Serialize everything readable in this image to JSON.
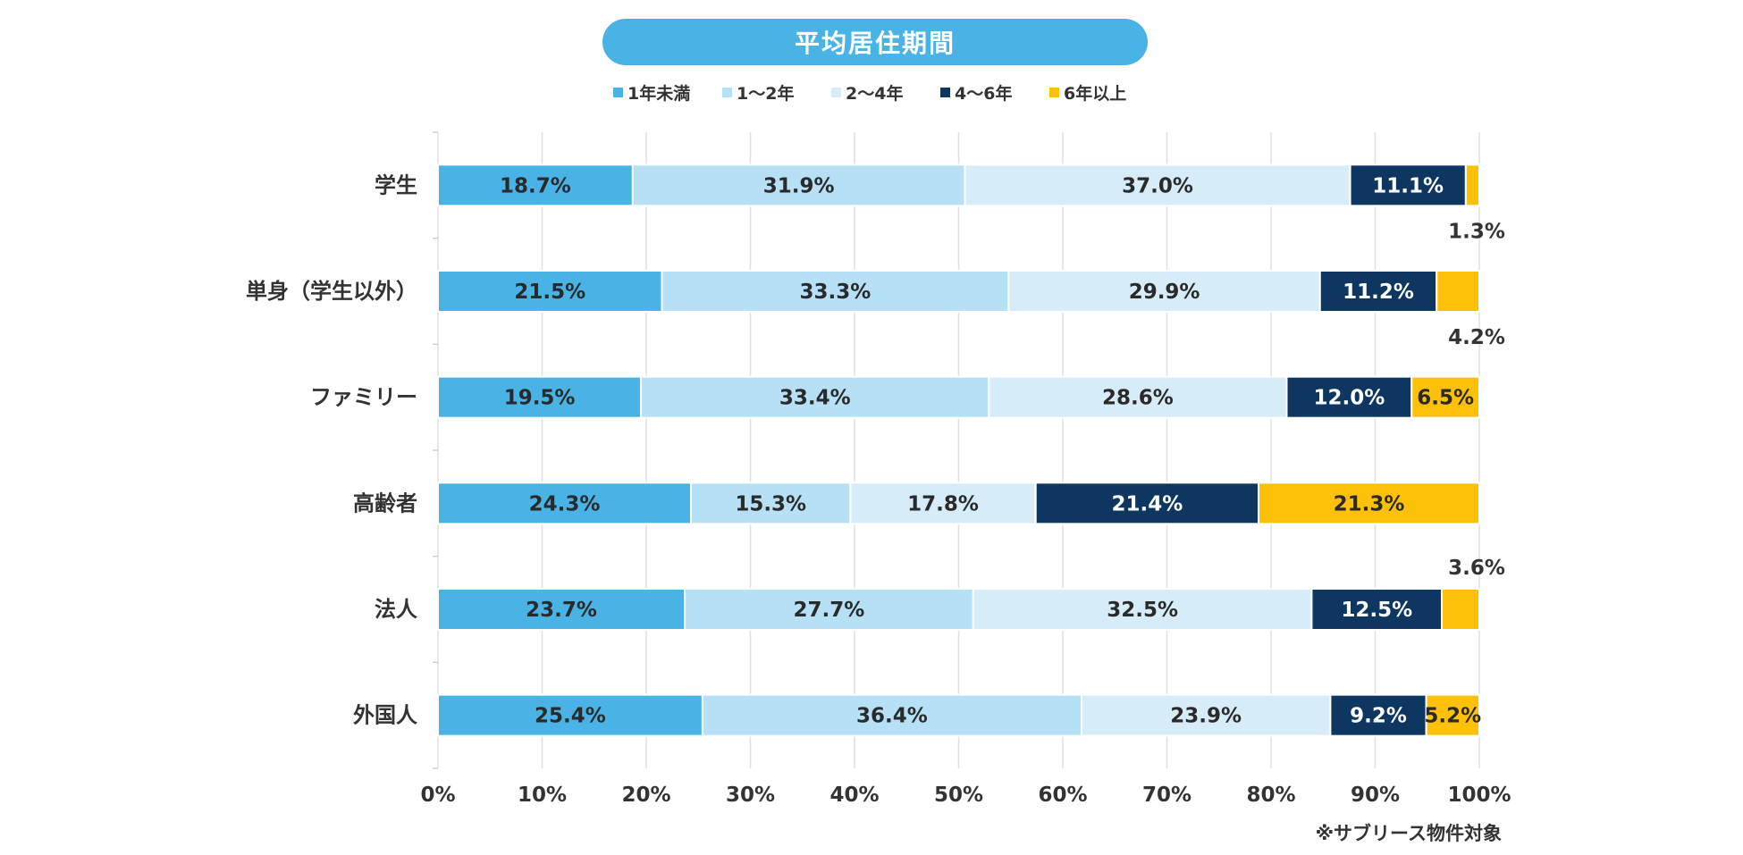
{
  "title": "平均居住期間",
  "note": "※サブリース物件対象",
  "colors": {
    "title_bg": "#4ab3e6",
    "s1": "#4ab3e6",
    "s2": "#b5e0f5",
    "s3": "#d6ecf9",
    "s4": "#0d3660",
    "s5": "#fec009"
  },
  "chart_data": {
    "type": "bar",
    "orientation": "horizontal",
    "stacked": true,
    "title": "平均居住期間",
    "categories": [
      "学生",
      "単身（学生以外）",
      "ファミリー",
      "高齢者",
      "法人",
      "外国人"
    ],
    "series": [
      {
        "name": "1年未満",
        "color": "#4ab3e6",
        "label_color": "#2a2a2a",
        "values": [
          18.7,
          21.5,
          19.5,
          24.3,
          23.7,
          25.4
        ]
      },
      {
        "name": "1〜2年",
        "color": "#b5e0f5",
        "label_color": "#2a2a2a",
        "values": [
          31.9,
          33.3,
          33.4,
          15.3,
          27.7,
          36.4
        ]
      },
      {
        "name": "2〜4年",
        "color": "#d6ecf9",
        "label_color": "#2a2a2a",
        "values": [
          37.0,
          29.9,
          28.6,
          17.8,
          32.5,
          23.9
        ]
      },
      {
        "name": "4〜6年",
        "color": "#0d3660",
        "label_color": "#ffffff",
        "values": [
          11.1,
          11.2,
          12.0,
          21.4,
          12.5,
          9.2
        ]
      },
      {
        "name": "6年以上",
        "color": "#fec009",
        "label_color": "#2a2a2a",
        "values": [
          1.3,
          4.2,
          6.5,
          21.3,
          3.6,
          5.2
        ]
      }
    ],
    "outside_labels": [
      {
        "series": 4,
        "category": 0,
        "position": "below"
      },
      {
        "series": 4,
        "category": 1,
        "position": "below"
      },
      {
        "series": 4,
        "category": 4,
        "position": "above"
      }
    ],
    "xlim": [
      0,
      100
    ],
    "xticks": [
      "0%",
      "10%",
      "20%",
      "30%",
      "40%",
      "50%",
      "60%",
      "70%",
      "80%",
      "90%",
      "100%"
    ],
    "legend_position": "top-center",
    "grid": true,
    "note": "※サブリース物件対象"
  }
}
